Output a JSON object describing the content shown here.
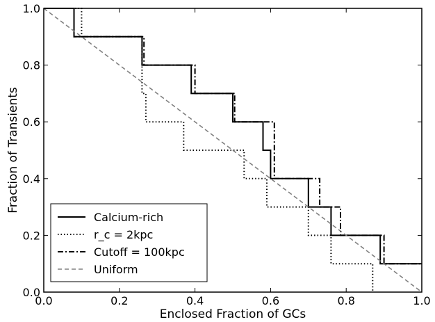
{
  "chart_data": {
    "type": "line",
    "title": "",
    "xlabel": "Enclosed Fraction of GCs",
    "ylabel": "Fraction of Transients",
    "xlim": [
      0.0,
      1.0
    ],
    "ylim": [
      0.0,
      1.0
    ],
    "xticks": [
      "0.0",
      "0.2",
      "0.4",
      "0.6",
      "0.8",
      "1.0"
    ],
    "yticks": [
      "0.0",
      "0.2",
      "0.4",
      "0.6",
      "0.8",
      "1.0"
    ],
    "grid": false,
    "legend_position": "lower-left",
    "series": [
      {
        "name": "Calcium-rich",
        "style": "solid",
        "color": "#000000",
        "x": [
          0.0,
          0.08,
          0.08,
          0.26,
          0.26,
          0.39,
          0.39,
          0.5,
          0.5,
          0.58,
          0.58,
          0.6,
          0.6,
          0.7,
          0.7,
          0.76,
          0.76,
          0.89,
          0.89,
          1.0
        ],
        "y": [
          1.0,
          1.0,
          0.9,
          0.9,
          0.8,
          0.8,
          0.7,
          0.7,
          0.6,
          0.6,
          0.5,
          0.5,
          0.4,
          0.4,
          0.3,
          0.3,
          0.2,
          0.2,
          0.1,
          0.1
        ]
      },
      {
        "name": "r_c = 2kpc",
        "style": "dotted",
        "color": "#000000",
        "x": [
          0.0,
          0.1,
          0.1,
          0.26,
          0.26,
          0.27,
          0.27,
          0.37,
          0.37,
          0.53,
          0.53,
          0.59,
          0.59,
          0.7,
          0.7,
          0.76,
          0.76,
          0.87,
          0.87
        ],
        "y": [
          1.0,
          1.0,
          0.9,
          0.9,
          0.7,
          0.7,
          0.6,
          0.6,
          0.5,
          0.5,
          0.4,
          0.4,
          0.3,
          0.3,
          0.2,
          0.2,
          0.1,
          0.1,
          0.0
        ]
      },
      {
        "name": "Cutoff = 100kpc",
        "style": "dashdot",
        "color": "#000000",
        "x": [
          0.0,
          0.08,
          0.08,
          0.265,
          0.265,
          0.4,
          0.4,
          0.505,
          0.505,
          0.61,
          0.61,
          0.73,
          0.73,
          0.785,
          0.785,
          0.9,
          0.9,
          1.0
        ],
        "y": [
          1.0,
          1.0,
          0.9,
          0.9,
          0.8,
          0.8,
          0.7,
          0.7,
          0.6,
          0.6,
          0.4,
          0.4,
          0.3,
          0.3,
          0.2,
          0.2,
          0.1,
          0.1
        ]
      },
      {
        "name": "Uniform",
        "style": "dashed",
        "color": "#808080",
        "x": [
          0.0,
          1.0
        ],
        "y": [
          1.0,
          0.0
        ]
      }
    ]
  }
}
